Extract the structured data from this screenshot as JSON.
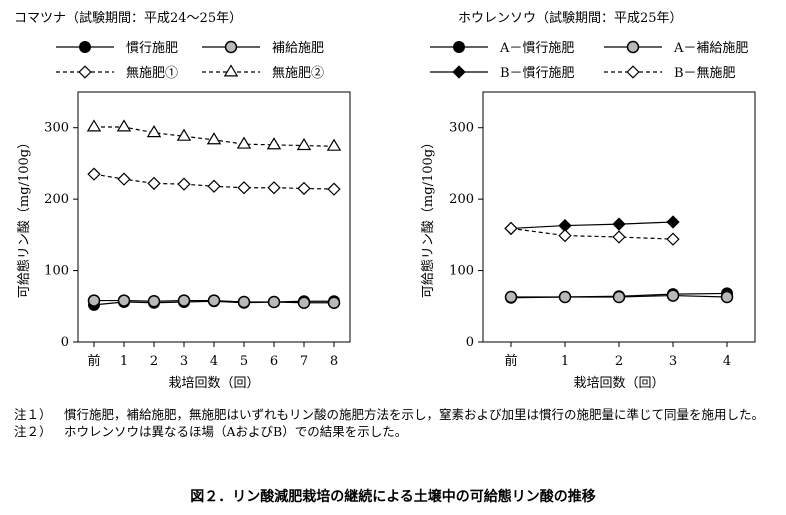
{
  "chart_data": [
    {
      "type": "line",
      "title": "コマツナ（試験期間：平成24～25年）",
      "xlabel": "栽培回数（回）",
      "ylabel": "可給態リン酸（mg/100g）",
      "categories": [
        "前",
        "1",
        "2",
        "3",
        "4",
        "5",
        "6",
        "7",
        "8"
      ],
      "ylim": [
        0,
        350
      ],
      "yticks": [
        0,
        100,
        200,
        300
      ],
      "grid": false,
      "legend": "top",
      "series": [
        {
          "name": "慣行施肥",
          "marker": "circle-filled",
          "dash": "solid",
          "values": [
            52,
            56,
            55,
            56,
            57,
            55,
            56,
            57,
            57
          ]
        },
        {
          "name": "補給施肥",
          "marker": "circle-gray",
          "dash": "solid",
          "values": [
            58,
            58,
            57,
            58,
            58,
            56,
            56,
            55,
            55
          ]
        },
        {
          "name": "無施肥①",
          "marker": "diamond-open",
          "dash": "dashed",
          "values": [
            235,
            228,
            222,
            221,
            218,
            216,
            216,
            215,
            214
          ]
        },
        {
          "name": "無施肥②",
          "marker": "triangle-open",
          "dash": "dashed",
          "values": [
            301,
            301,
            293,
            288,
            283,
            277,
            276,
            275,
            274
          ]
        }
      ]
    },
    {
      "type": "line",
      "title": "ホウレンソウ（試験期間：平成25年）",
      "xlabel": "栽培回数（回）",
      "ylabel": "可給態リン酸（mg/100g）",
      "categories": [
        "前",
        "1",
        "2",
        "3",
        "4"
      ],
      "ylim": [
        0,
        350
      ],
      "yticks": [
        0,
        100,
        200,
        300
      ],
      "grid": false,
      "legend": "top",
      "series": [
        {
          "name": "A－慣行施肥",
          "marker": "circle-filled",
          "dash": "solid",
          "values": [
            62,
            63,
            64,
            67,
            68
          ]
        },
        {
          "name": "A－補給施肥",
          "marker": "circle-gray",
          "dash": "solid",
          "values": [
            63,
            63,
            63,
            65,
            63
          ]
        },
        {
          "name": "B－慣行施肥",
          "marker": "diamond-filled",
          "dash": "solid",
          "values": [
            159,
            163,
            165,
            168,
            null
          ]
        },
        {
          "name": "B－無施肥",
          "marker": "diamond-open",
          "dash": "dashed",
          "values": [
            159,
            149,
            147,
            144,
            null
          ]
        }
      ]
    }
  ],
  "notes": [
    {
      "tag": "注１）",
      "text": "慣行施肥，補給施肥，無施肥はいずれもリン酸の施肥方法を示し，窒素および加里は慣行の施肥量に準じて同量を施用した。"
    },
    {
      "tag": "注２）",
      "text": "ホウレンソウは異なるほ場（AおよびB）での結果を示した。"
    }
  ],
  "caption": "図２．リン酸減肥栽培の継続による土壌中の可給態リン酸の推移"
}
